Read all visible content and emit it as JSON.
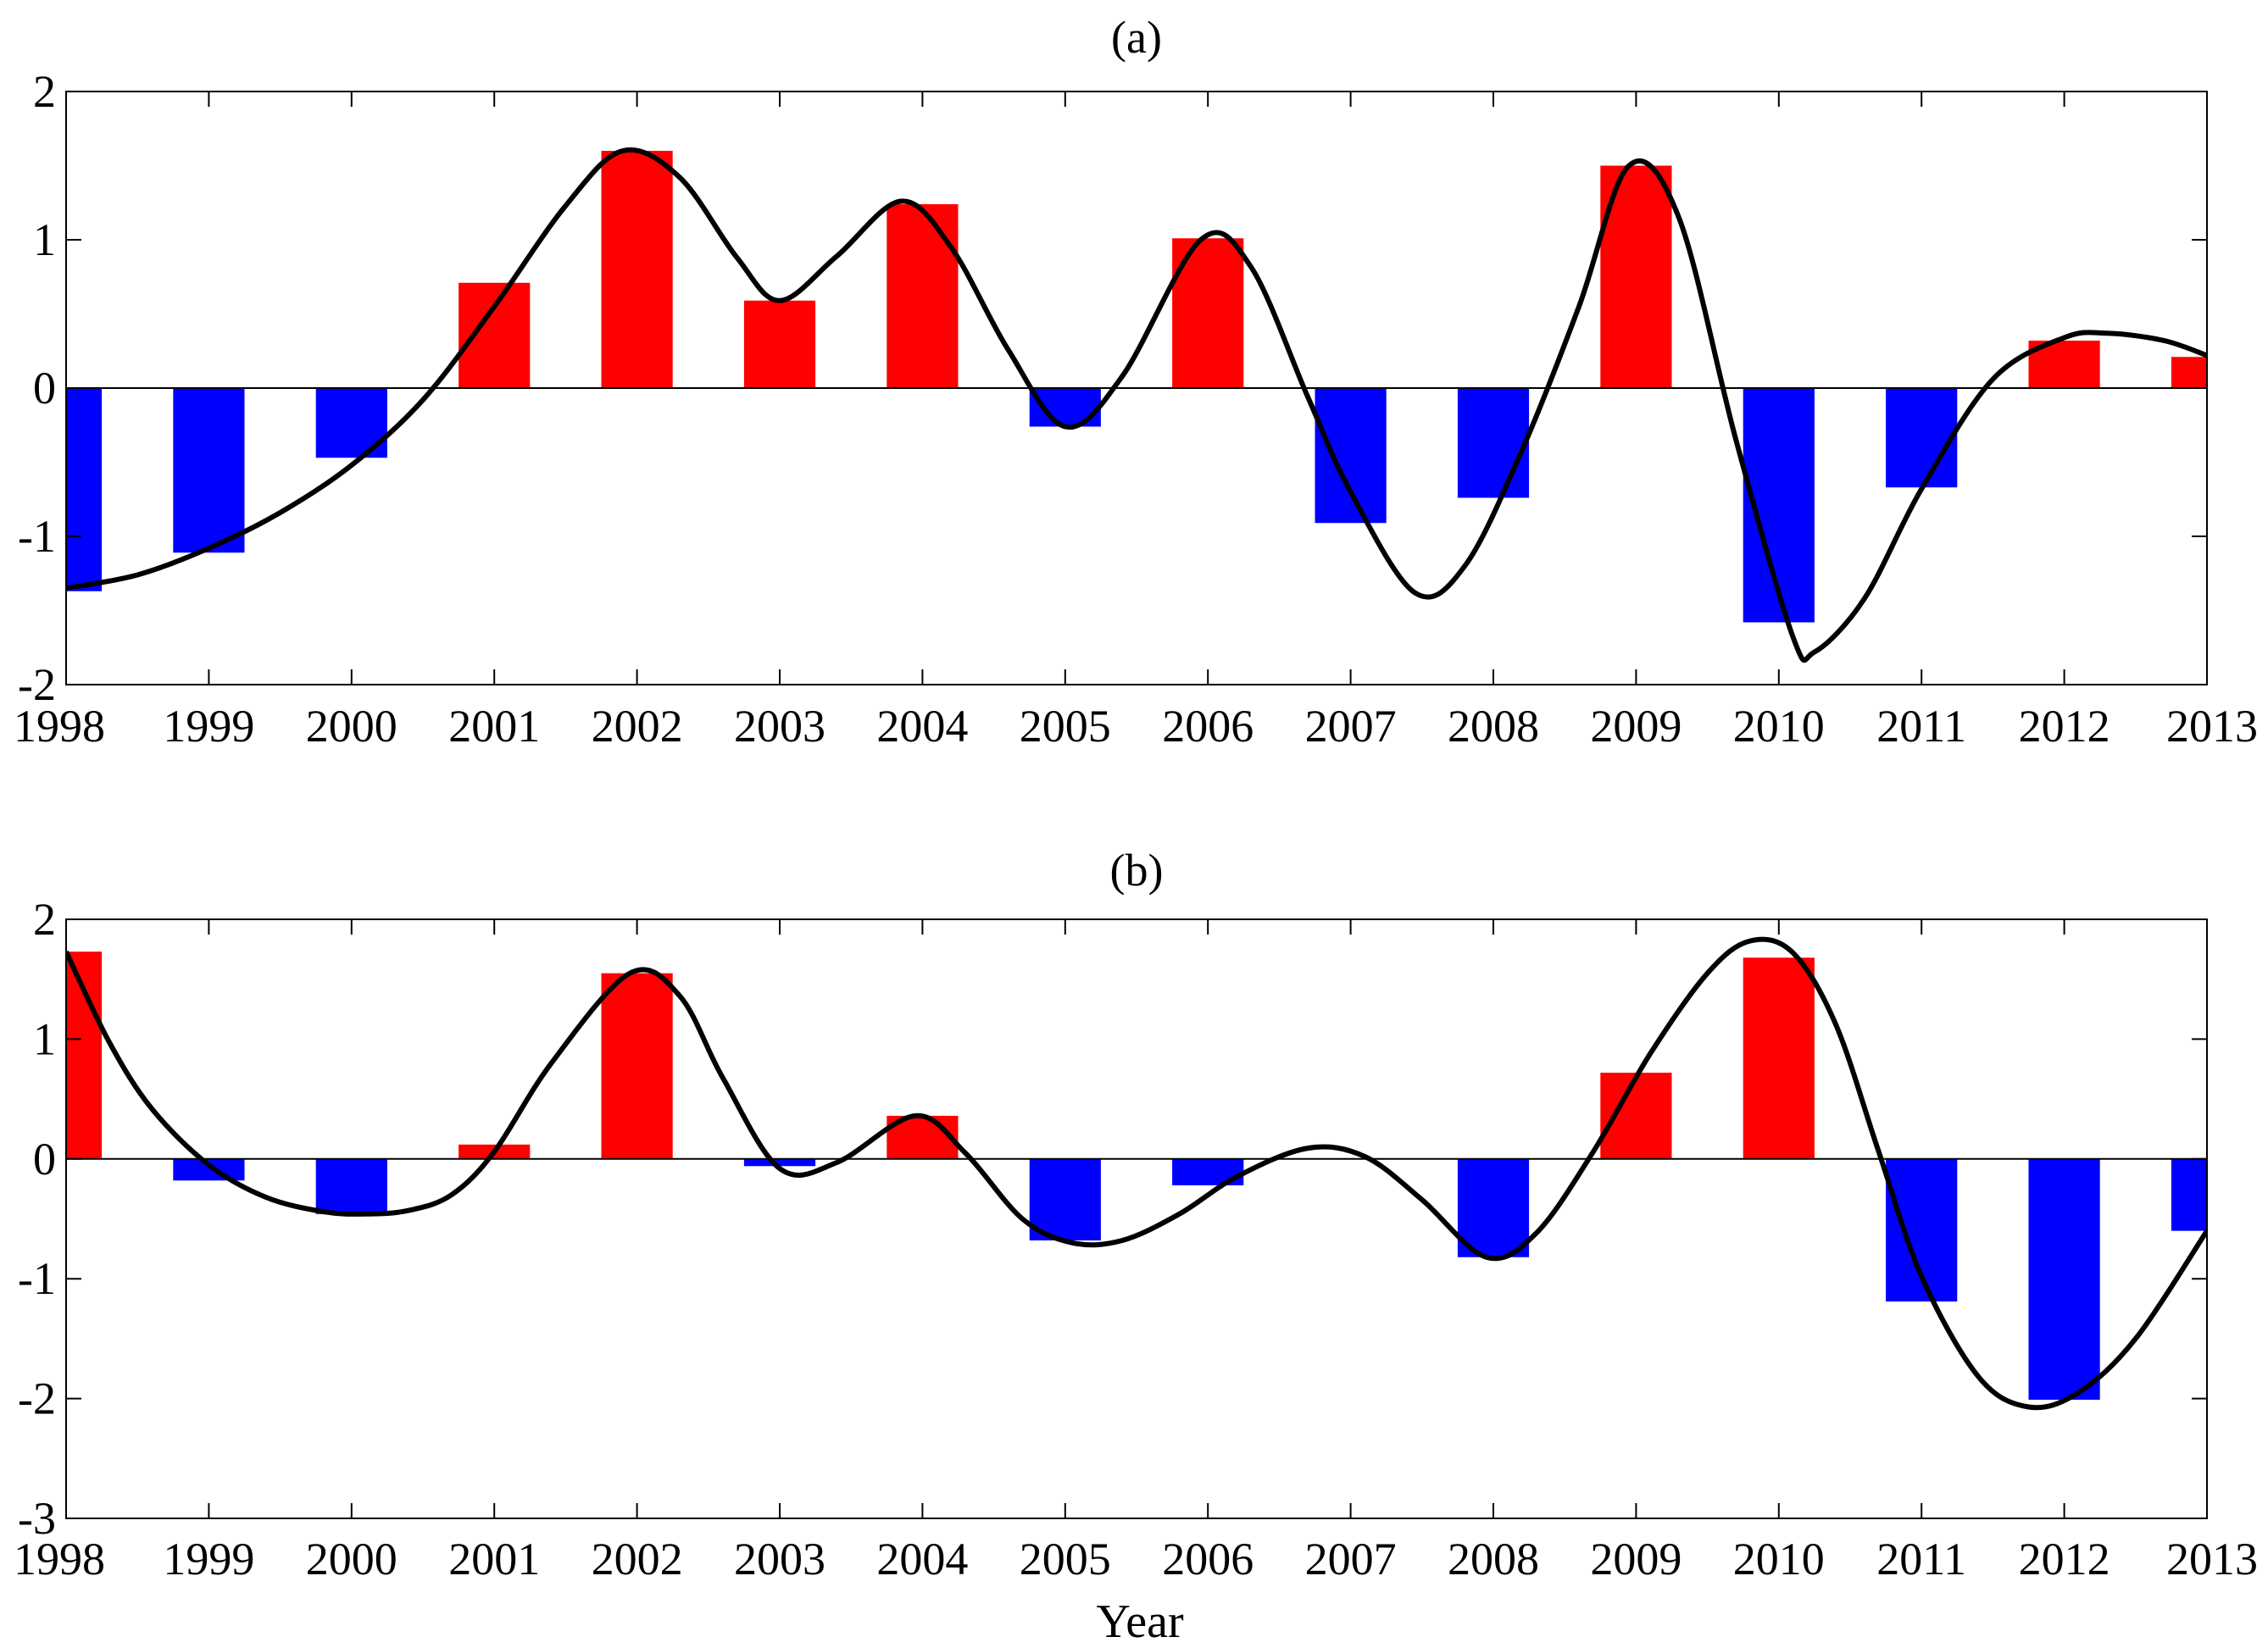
{
  "colors": {
    "positive": "#ff0000",
    "negative": "#0000ff",
    "curve": "#000000",
    "axis": "#000000"
  },
  "xlabel": "Year",
  "chart_data": [
    {
      "type": "bar",
      "title": "(a)",
      "xlabel": "",
      "ylabel": "",
      "categories": [
        "1998",
        "1999",
        "2000",
        "2001",
        "2002",
        "2003",
        "2004",
        "2005",
        "2006",
        "2007",
        "2008",
        "2009",
        "2010",
        "2011",
        "2012",
        "2013"
      ],
      "values": [
        -1.37,
        -1.11,
        -0.47,
        0.71,
        1.6,
        0.59,
        1.24,
        -0.26,
        1.01,
        -0.91,
        -0.74,
        1.5,
        -1.58,
        -0.67,
        0.32,
        0.21
      ],
      "yticks": [
        -2,
        -1,
        0,
        1,
        2
      ],
      "ylim": [
        -2,
        2
      ],
      "xlim": [
        1998,
        2013
      ],
      "smooth_curve": {
        "name": "fitted curve",
        "x": [
          1998,
          1998.5,
          1999,
          1999.5,
          2000,
          2000.5,
          2001,
          2001.5,
          2001.9,
          2002.3,
          2002.7,
          2003,
          2003.4,
          2003.85,
          2004.2,
          2004.6,
          2005,
          2005.4,
          2005.95,
          2006.3,
          2006.7,
          2007,
          2007.45,
          2007.8,
          2008.2,
          2008.6,
          2008.95,
          2009.3,
          2009.7,
          2010.1,
          2010.25,
          2010.6,
          2011,
          2011.5,
          2012,
          2012.3,
          2012.7,
          2013
        ],
        "values": [
          -1.35,
          -1.26,
          -1.08,
          -0.84,
          -0.52,
          -0.08,
          0.55,
          1.23,
          1.6,
          1.42,
          0.88,
          0.59,
          0.89,
          1.26,
          0.95,
          0.26,
          -0.26,
          0.08,
          1.0,
          0.82,
          -0.06,
          -0.7,
          -1.38,
          -1.2,
          -0.42,
          0.55,
          1.5,
          1.15,
          -0.35,
          -1.68,
          -1.78,
          -1.42,
          -0.68,
          0.06,
          0.34,
          0.37,
          0.32,
          0.22
        ]
      }
    },
    {
      "type": "bar",
      "title": "(b)",
      "xlabel": "Year",
      "ylabel": "",
      "categories": [
        "1998",
        "1999",
        "2000",
        "2001",
        "2002",
        "2003",
        "2004",
        "2005",
        "2006",
        "2007",
        "2008",
        "2009",
        "2010",
        "2011",
        "2012",
        "2013"
      ],
      "values": [
        1.73,
        -0.18,
        -0.46,
        0.12,
        1.55,
        -0.06,
        0.36,
        -0.68,
        -0.22,
        0.0,
        -0.82,
        0.72,
        1.68,
        -1.19,
        -2.01,
        -0.6
      ],
      "yticks": [
        -3,
        -2,
        -1,
        0,
        1,
        2
      ],
      "ylim": [
        -3,
        2
      ],
      "xlim": [
        1998,
        2013
      ],
      "smooth_curve": {
        "name": "fitted curve",
        "x": [
          1998,
          1998.3,
          1998.6,
          1999,
          1999.4,
          1999.8,
          2000.1,
          2000.4,
          2000.7,
          2001,
          2001.4,
          2001.95,
          2002.3,
          2002.6,
          2003,
          2003.4,
          2003.95,
          2004.3,
          2004.7,
          2005.05,
          2005.4,
          2005.8,
          2006.2,
          2006.7,
          2007.1,
          2007.5,
          2007.95,
          2008.3,
          2008.7,
          2009.1,
          2009.5,
          2009.8,
          2010.1,
          2010.4,
          2010.7,
          2011,
          2011.4,
          2011.75,
          2012.1,
          2012.5,
          2013
        ],
        "values": [
          1.73,
          0.98,
          0.42,
          -0.05,
          -0.32,
          -0.44,
          -0.46,
          -0.43,
          -0.3,
          0.06,
          0.8,
          1.55,
          1.36,
          0.68,
          -0.08,
          -0.03,
          0.36,
          0.05,
          -0.5,
          -0.7,
          -0.68,
          -0.46,
          -0.15,
          0.09,
          0.02,
          -0.34,
          -0.82,
          -0.62,
          0.06,
          0.88,
          1.55,
          1.82,
          1.72,
          1.12,
          0.06,
          -0.98,
          -1.82,
          -2.07,
          -1.95,
          -1.5,
          -0.6
        ]
      }
    }
  ]
}
